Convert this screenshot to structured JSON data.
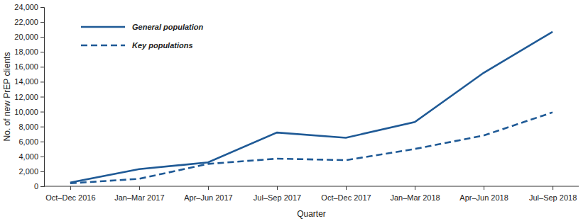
{
  "chart_data": {
    "type": "line",
    "x_label": "Quarter",
    "y_label": "No. of new PrEP clients",
    "categories": [
      "Oct–Dec 2016",
      "Jan–Mar 2017",
      "Apr–Jun 2017",
      "Jul–Sep 2017",
      "Oct–Dec 2017",
      "Jan–Mar 2018",
      "Apr–Jun 2018",
      "Jul–Sep 2018"
    ],
    "series": [
      {
        "name": "General population",
        "color": "#1f5a96",
        "line_style": "solid",
        "values": [
          500,
          2300,
          3200,
          7200,
          6500,
          8600,
          15200,
          20700
        ]
      },
      {
        "name": "Key populations",
        "color": "#1f5a96",
        "line_style": "dashed",
        "values": [
          400,
          1000,
          3000,
          3700,
          3500,
          5000,
          6800,
          9900
        ]
      }
    ],
    "ylim": [
      0,
      24000
    ],
    "yticks": [
      0,
      {
        "value": 2000,
        "label": "2,000"
      },
      {
        "value": 4000,
        "label": "4,000"
      },
      {
        "value": 6000,
        "label": "6,000"
      },
      {
        "value": 8000,
        "label": "8,000"
      },
      {
        "value": 10000,
        "label": "10,000"
      },
      {
        "value": 12000,
        "label": "12,000"
      },
      {
        "value": 14000,
        "label": "14,000"
      },
      {
        "value": 16000,
        "label": "16,000"
      },
      {
        "value": 18000,
        "label": "18,000"
      },
      {
        "value": 20000,
        "label": "20,000"
      },
      {
        "value": 22000,
        "label": "22,000"
      },
      {
        "value": 24000,
        "label": "24,000"
      }
    ],
    "grid": false,
    "legend": "upper left"
  }
}
